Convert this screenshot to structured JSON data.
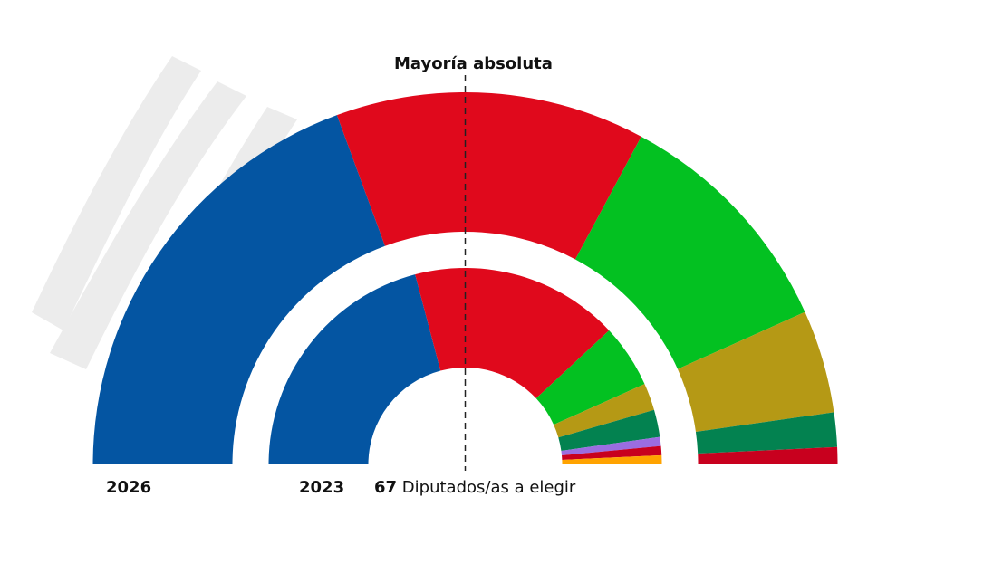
{
  "chart_data": [
    {
      "type": "pie",
      "subtype": "parliament-semicircle",
      "title": "2026",
      "total_seats": 67,
      "values": [
        26,
        18,
        14,
        6,
        2,
        1
      ],
      "colors": [
        "#0455a2",
        "#e0091c",
        "#03c121",
        "#b59915",
        "#038250",
        "#c8001e"
      ]
    },
    {
      "type": "pie",
      "subtype": "parliament-semicircle",
      "title": "2023",
      "total_seats": 67,
      "values": [
        28,
        23,
        7,
        3,
        3,
        1,
        1,
        1
      ],
      "colors": [
        "#0455a2",
        "#e0091c",
        "#03c121",
        "#b59915",
        "#038250",
        "#9b6de0",
        "#c8001e",
        "#ffa300"
      ]
    }
  ],
  "majority_label": "Mayoría absoluta",
  "seats_count": "67",
  "seats_text": "Diputados/as a elegir",
  "year_outer": "2026",
  "year_inner": "2023"
}
